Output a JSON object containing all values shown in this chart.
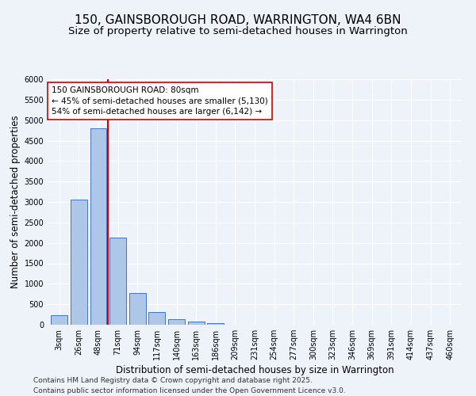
{
  "title_line1": "150, GAINSBOROUGH ROAD, WARRINGTON, WA4 6BN",
  "title_line2": "Size of property relative to semi-detached houses in Warrington",
  "xlabel": "Distribution of semi-detached houses by size in Warrington",
  "ylabel": "Number of semi-detached properties",
  "categories": [
    "3sqm",
    "26sqm",
    "48sqm",
    "71sqm",
    "94sqm",
    "117sqm",
    "140sqm",
    "163sqm",
    "186sqm",
    "209sqm",
    "231sqm",
    "254sqm",
    "277sqm",
    "300sqm",
    "323sqm",
    "346sqm",
    "369sqm",
    "391sqm",
    "414sqm",
    "437sqm",
    "460sqm"
  ],
  "values": [
    230,
    3050,
    4800,
    2120,
    775,
    305,
    145,
    80,
    40,
    0,
    0,
    0,
    0,
    0,
    0,
    0,
    0,
    0,
    0,
    0,
    0
  ],
  "bar_color": "#aec6e8",
  "bar_edge_color": "#4472c4",
  "vline_color": "#cc0000",
  "annotation_text": "150 GAINSBOROUGH ROAD: 80sqm\n← 45% of semi-detached houses are smaller (5,130)\n54% of semi-detached houses are larger (6,142) →",
  "annotation_box_color": "#ffffff",
  "annotation_box_edge": "#cc0000",
  "ylim": [
    0,
    6000
  ],
  "yticks": [
    0,
    500,
    1000,
    1500,
    2000,
    2500,
    3000,
    3500,
    4000,
    4500,
    5000,
    5500,
    6000
  ],
  "footer_text": "Contains HM Land Registry data © Crown copyright and database right 2025.\nContains public sector information licensed under the Open Government Licence v3.0.",
  "background_color": "#eef2f9",
  "grid_color": "#ffffff",
  "title_fontsize": 11,
  "subtitle_fontsize": 9.5,
  "axis_label_fontsize": 8.5,
  "tick_fontsize": 7,
  "annotation_fontsize": 7.5,
  "footer_fontsize": 6.5
}
